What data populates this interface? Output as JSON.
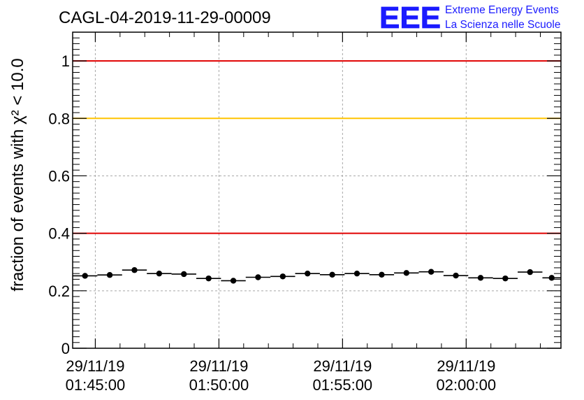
{
  "logo": {
    "mark": "EEE",
    "line1": "Extreme Energy Events",
    "line2": "La Scienza nelle Scuole",
    "color": "#1b1bff"
  },
  "chart_data": {
    "type": "scatter",
    "title": "CAGL-04-2019-11-29-00009",
    "ylabel": "fraction of events with χ² < 10.0",
    "xlabel": "",
    "ylim": [
      0,
      1.1
    ],
    "yticks": [
      {
        "value": 0,
        "label": "0"
      },
      {
        "value": 0.2,
        "label": "0.2"
      },
      {
        "value": 0.4,
        "label": "0.4"
      },
      {
        "value": 0.6,
        "label": "0.6"
      },
      {
        "value": 0.8,
        "label": "0.8"
      },
      {
        "value": 1,
        "label": "1"
      }
    ],
    "xlim": [
      "01:44:05",
      "02:03:50"
    ],
    "xticks": [
      {
        "time": "01:45:00",
        "label_date": "29/11/19",
        "label_time": "01:45:00"
      },
      {
        "time": "01:50:00",
        "label_date": "29/11/19",
        "label_time": "01:50:00"
      },
      {
        "time": "01:55:00",
        "label_date": "29/11/19",
        "label_time": "01:55:00"
      },
      {
        "time": "02:00:00",
        "label_date": "29/11/19",
        "label_time": "02:00:00"
      }
    ],
    "grid": true,
    "reference_lines": [
      {
        "y": 1.0,
        "color": "#e00000"
      },
      {
        "y": 0.8,
        "color": "#ffc400"
      },
      {
        "y": 0.4,
        "color": "#e00000"
      }
    ],
    "bin_width_min": 1,
    "points": [
      {
        "x": "01:44:05",
        "y": 0.252
      },
      {
        "x": "01:45:05",
        "y": 0.255
      },
      {
        "x": "01:46:05",
        "y": 0.272
      },
      {
        "x": "01:47:05",
        "y": 0.26
      },
      {
        "x": "01:48:05",
        "y": 0.258
      },
      {
        "x": "01:49:05",
        "y": 0.243
      },
      {
        "x": "01:50:05",
        "y": 0.235
      },
      {
        "x": "01:51:05",
        "y": 0.247
      },
      {
        "x": "01:52:05",
        "y": 0.25
      },
      {
        "x": "01:53:05",
        "y": 0.26
      },
      {
        "x": "01:54:05",
        "y": 0.256
      },
      {
        "x": "01:55:05",
        "y": 0.26
      },
      {
        "x": "01:56:05",
        "y": 0.256
      },
      {
        "x": "01:57:05",
        "y": 0.262
      },
      {
        "x": "01:58:05",
        "y": 0.266
      },
      {
        "x": "01:59:05",
        "y": 0.253
      },
      {
        "x": "02:00:05",
        "y": 0.245
      },
      {
        "x": "02:01:05",
        "y": 0.243
      },
      {
        "x": "02:02:05",
        "y": 0.265
      },
      {
        "x": "02:03:05",
        "y": 0.245
      }
    ]
  }
}
